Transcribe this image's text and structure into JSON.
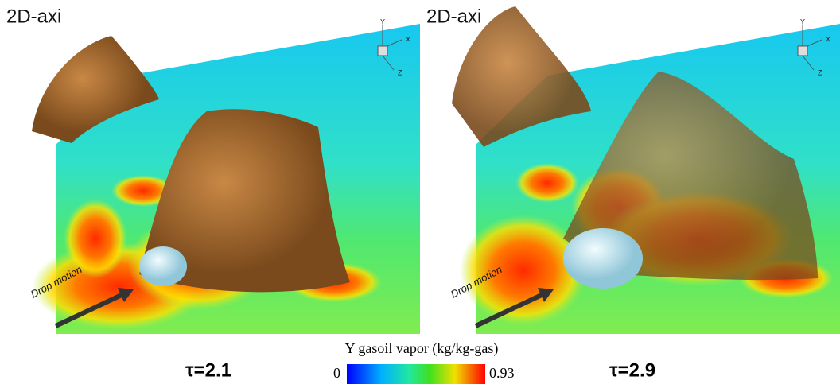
{
  "panels": [
    {
      "label": "2D-axi",
      "axes": [
        "Y",
        "X",
        "Z"
      ],
      "arrow_label": "Drop motion",
      "time": "τ=2.1"
    },
    {
      "label": "2D-axi",
      "axes": [
        "Y",
        "X",
        "Z"
      ],
      "arrow_label": "Drop motion",
      "time": "τ=2.9"
    }
  ],
  "colorbar": {
    "title": "Y gasoil vapor (kg/kg-gas)",
    "min": 0,
    "max": 0.93
  }
}
